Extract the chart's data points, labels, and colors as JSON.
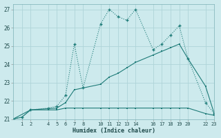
{
  "xlabel": "Humidex (Indice chaleur)",
  "bg_color": "#cdeaed",
  "grid_color": "#afd4d8",
  "line_color": "#1e7b78",
  "xlim": [
    0,
    23
  ],
  "ylim": [
    21.0,
    27.3
  ],
  "xticks": [
    1,
    2,
    4,
    5,
    6,
    7,
    8,
    10,
    11,
    12,
    13,
    14,
    16,
    17,
    18,
    19,
    20,
    22,
    23
  ],
  "yticks": [
    21,
    22,
    23,
    24,
    25,
    26,
    27
  ],
  "series1_x": [
    0,
    1,
    2,
    4,
    5,
    6,
    7,
    8,
    10,
    11,
    12,
    13,
    14,
    16,
    17,
    18,
    19,
    20,
    22,
    23
  ],
  "series1_y": [
    21.0,
    21.1,
    21.5,
    21.6,
    21.7,
    22.3,
    25.1,
    22.7,
    26.2,
    27.0,
    26.6,
    26.4,
    27.0,
    24.8,
    25.1,
    25.6,
    26.1,
    24.3,
    21.9,
    21.3
  ],
  "series2_x": [
    0,
    2,
    5,
    6,
    7,
    10,
    11,
    12,
    13,
    14,
    16,
    17,
    18,
    19,
    20,
    22,
    23
  ],
  "series2_y": [
    21.0,
    21.5,
    21.6,
    21.9,
    22.6,
    22.9,
    23.3,
    23.5,
    23.8,
    24.1,
    24.5,
    24.7,
    24.9,
    25.1,
    24.3,
    22.8,
    21.3
  ],
  "series3_x": [
    0,
    1,
    2,
    4,
    5,
    6,
    7,
    8,
    10,
    11,
    12,
    13,
    14,
    16,
    17,
    18,
    19,
    20,
    22,
    23
  ],
  "series3_y": [
    21.0,
    21.1,
    21.5,
    21.5,
    21.5,
    21.6,
    21.6,
    21.6,
    21.6,
    21.6,
    21.6,
    21.6,
    21.6,
    21.6,
    21.6,
    21.6,
    21.6,
    21.6,
    21.3,
    21.2
  ]
}
